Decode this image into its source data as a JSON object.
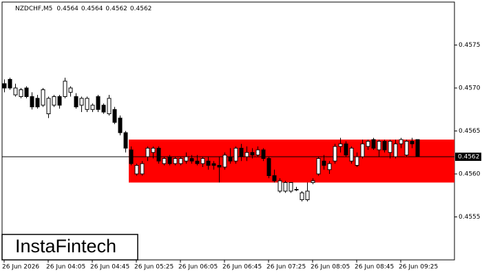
{
  "chart_data": {
    "type": "candlestick",
    "title": "NZDCHF,M5",
    "header_values": [
      0.4564,
      0.4564,
      0.4562,
      0.4562
    ],
    "open": [
      0.45705,
      0.4571,
      0.45692,
      0.4569,
      0.457,
      0.4569,
      0.45688,
      0.4568,
      0.4567,
      0.4568,
      0.4569,
      0.4569,
      0.45695,
      0.4569,
      0.4568,
      0.45675,
      0.45675,
      0.4569,
      0.4568,
      0.4567,
      0.45675,
      0.45665,
      0.45648,
      0.45628,
      0.456,
      0.456,
      0.4562,
      0.45625,
      0.4563,
      0.45612,
      0.4562,
      0.45612,
      0.45612,
      0.45615,
      0.45618,
      0.45615,
      0.45612,
      0.45615,
      0.45612,
      0.4561,
      0.45608,
      0.4562,
      0.45615,
      0.4563,
      0.4562,
      0.45625,
      0.45622,
      0.45628,
      0.45618,
      0.45598,
      0.4558,
      0.4558,
      0.4558,
      0.45582,
      0.4557,
      0.4557,
      0.4559,
      0.456,
      0.45615,
      0.45605,
      0.45615,
      0.45632,
      0.45635,
      0.45615,
      0.4561,
      0.4562,
      0.45632,
      0.4564,
      0.45628,
      0.45638,
      0.45625,
      0.4562,
      0.45635,
      0.45622,
      0.45638,
      0.4564
    ],
    "high": [
      0.4571,
      0.45712,
      0.45705,
      0.457,
      0.45702,
      0.45695,
      0.45692,
      0.457,
      0.4569,
      0.45692,
      0.45692,
      0.45712,
      0.45702,
      0.45694,
      0.4569,
      0.4569,
      0.45682,
      0.45692,
      0.45682,
      0.45692,
      0.45678,
      0.45668,
      0.4565,
      0.45632,
      0.45612,
      0.45615,
      0.45632,
      0.45632,
      0.45632,
      0.4562,
      0.45622,
      0.4562,
      0.4562,
      0.45625,
      0.45622,
      0.45622,
      0.4562,
      0.4562,
      0.45615,
      0.4562,
      0.45625,
      0.4563,
      0.45632,
      0.45635,
      0.45632,
      0.4563,
      0.45632,
      0.4563,
      0.4562,
      0.45605,
      0.45595,
      0.45592,
      0.4559,
      0.45585,
      0.4558,
      0.4559,
      0.45595,
      0.4562,
      0.45622,
      0.45615,
      0.45635,
      0.45642,
      0.45638,
      0.45632,
      0.45625,
      0.4564,
      0.4564,
      0.45642,
      0.4564,
      0.4564,
      0.4564,
      0.4564,
      0.45642,
      0.4564,
      0.45642,
      0.4564
    ],
    "low": [
      0.45695,
      0.45698,
      0.4569,
      0.45688,
      0.45688,
      0.45675,
      0.45676,
      0.45678,
      0.45665,
      0.45678,
      0.45676,
      0.45688,
      0.4569,
      0.45676,
      0.45672,
      0.45672,
      0.45672,
      0.45672,
      0.4567,
      0.45668,
      0.45658,
      0.45645,
      0.45625,
      0.4561,
      0.45598,
      0.45598,
      0.45615,
      0.45618,
      0.45612,
      0.4561,
      0.4561,
      0.4561,
      0.4561,
      0.45612,
      0.45612,
      0.4561,
      0.45608,
      0.45605,
      0.45605,
      0.4559,
      0.45605,
      0.45612,
      0.45612,
      0.45615,
      0.45615,
      0.45618,
      0.4562,
      0.45615,
      0.45595,
      0.4559,
      0.45578,
      0.45578,
      0.45578,
      0.4558,
      0.45568,
      0.45568,
      0.45588,
      0.45598,
      0.45605,
      0.456,
      0.45612,
      0.45625,
      0.4562,
      0.45612,
      0.45608,
      0.45618,
      0.45628,
      0.45628,
      0.4562,
      0.45625,
      0.45618,
      0.45618,
      0.4563,
      0.4562,
      0.4563,
      0.4562
    ],
    "close": [
      0.457,
      0.457,
      0.457,
      0.45698,
      0.4569,
      0.45678,
      0.45678,
      0.45698,
      0.45688,
      0.4569,
      0.4568,
      0.45708,
      0.457,
      0.45678,
      0.45688,
      0.45688,
      0.4568,
      0.45675,
      0.45672,
      0.45688,
      0.4566,
      0.45648,
      0.4563,
      0.45612,
      0.4561,
      0.45612,
      0.4563,
      0.4563,
      0.45615,
      0.45618,
      0.45612,
      0.45618,
      0.45618,
      0.4562,
      0.45615,
      0.45612,
      0.45618,
      0.4561,
      0.4561,
      0.45608,
      0.45622,
      0.45615,
      0.4563,
      0.4562,
      0.45625,
      0.45622,
      0.45628,
      0.45618,
      0.45598,
      0.45592,
      0.45592,
      0.4559,
      0.4559,
      0.45582,
      0.45578,
      0.4558,
      0.45592,
      0.45618,
      0.4561,
      0.45612,
      0.45632,
      0.45635,
      0.45622,
      0.4563,
      0.4562,
      0.45635,
      0.45638,
      0.4563,
      0.45638,
      0.45628,
      0.45638,
      0.45635,
      0.4564,
      0.45638,
      0.45635,
      0.4562
    ],
    "xticks": [
      {
        "value": 0,
        "label": "26 Jun 2026"
      },
      {
        "value": 8,
        "label": "26 Jun 04:05"
      },
      {
        "value": 16,
        "label": "26 Jun 04:45"
      },
      {
        "value": 24,
        "label": "26 Jun 05:25"
      },
      {
        "value": 32,
        "label": "26 Jun 06:05"
      },
      {
        "value": 40,
        "label": "26 Jun 06:45"
      },
      {
        "value": 48,
        "label": "26 Jun 07:25"
      },
      {
        "value": 56,
        "label": "26 Jun 08:05"
      },
      {
        "value": 64,
        "label": "26 Jun 08:45"
      },
      {
        "value": 72,
        "label": "26 Jun 09:25"
      }
    ],
    "ylim": [
      0.455,
      0.458
    ],
    "yticks": [
      0.4555,
      {
        "value": 0.456,
        "label": "0.4560"
      },
      0.4565,
      {
        "value": 0.457,
        "label": "0.4570"
      },
      0.4575
    ],
    "current_price": 0.4562,
    "zone": {
      "from": 23,
      "low": 0.4559,
      "high": 0.4564,
      "color": "#ff0000"
    },
    "logo": "InstaFintech"
  }
}
